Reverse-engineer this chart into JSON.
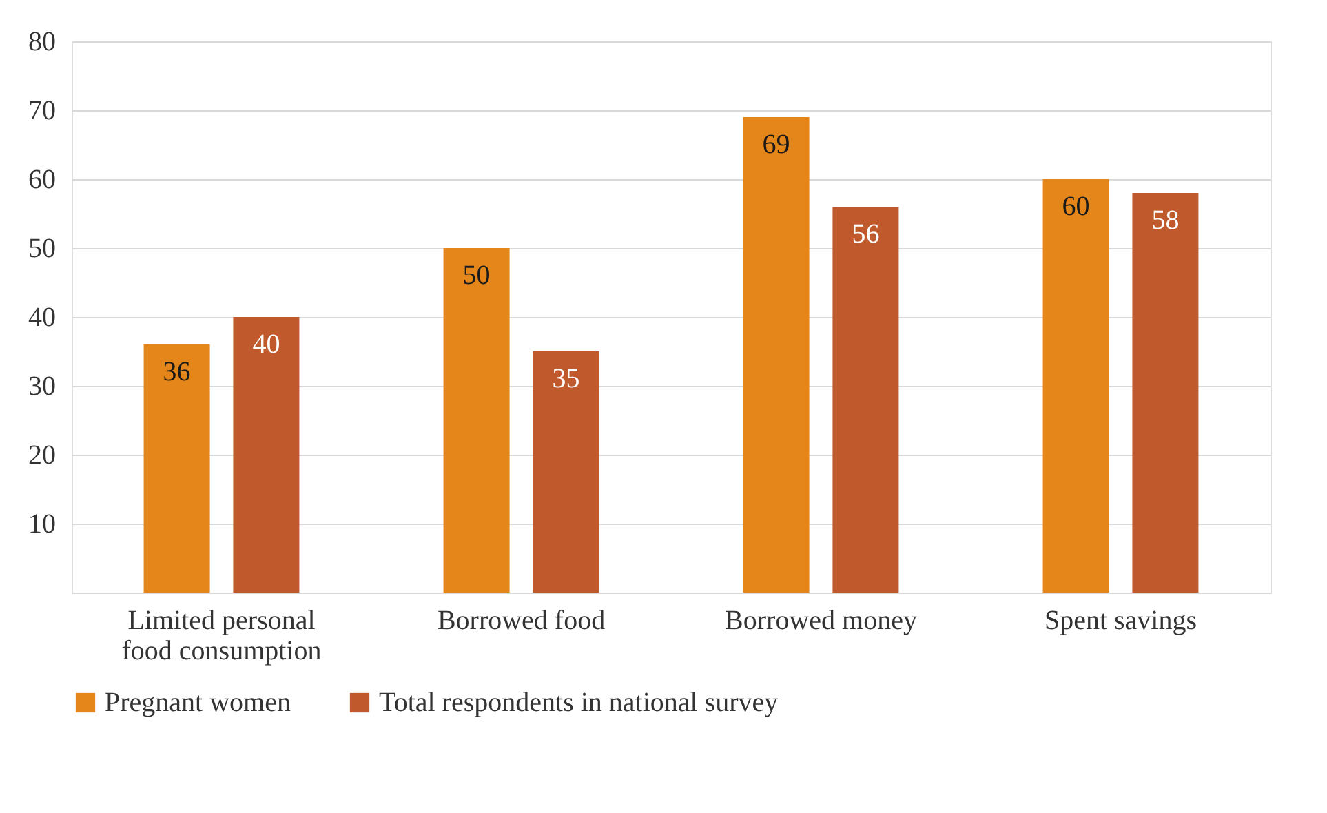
{
  "chart_data": {
    "type": "bar",
    "categories": [
      "Limited personal food consumption",
      "Borrowed food",
      "Borrowed money",
      "Spent savings"
    ],
    "series": [
      {
        "name": "Pregnant women",
        "color": "#e4861a",
        "values": [
          36,
          50,
          69,
          60
        ]
      },
      {
        "name": "Total respondents in national survey",
        "color": "#c0592c",
        "values": [
          40,
          35,
          56,
          58
        ]
      }
    ],
    "ylim": [
      0,
      80
    ],
    "yticks": [
      {
        "value": 0,
        "label": null
      },
      10,
      20,
      30,
      40,
      50,
      60,
      70,
      80
    ],
    "grid": "y",
    "legend": "bottom",
    "data_labels": true
  }
}
